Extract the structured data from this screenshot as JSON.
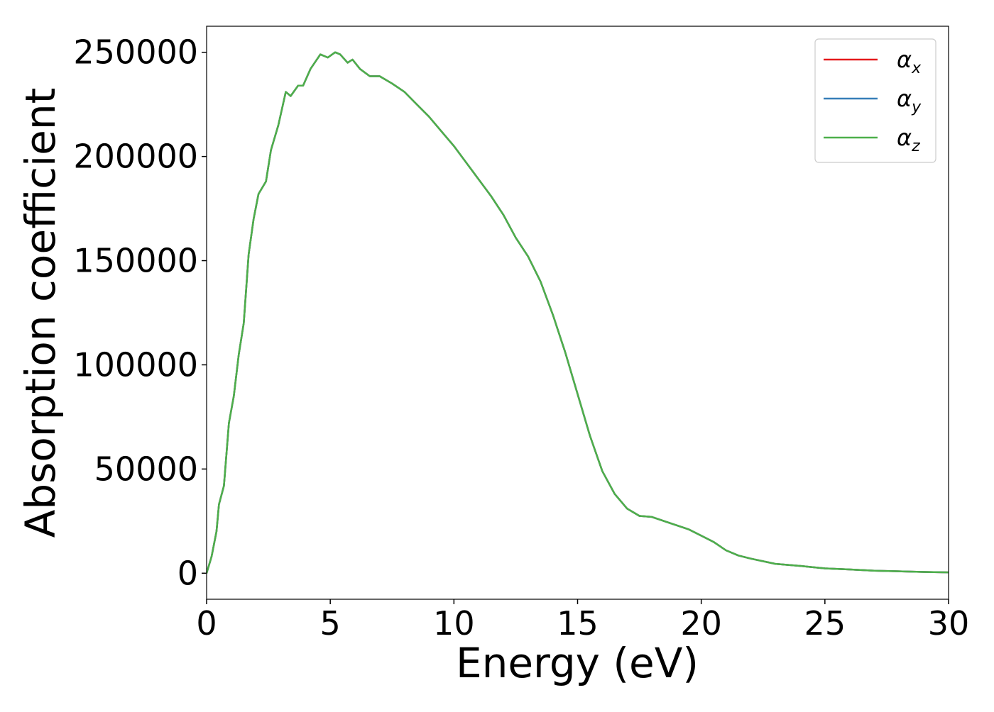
{
  "chart_data": {
    "type": "line",
    "xlabel": "Energy (eV)",
    "ylabel": "Absorption coefficient",
    "x": [
      0,
      0.2,
      0.4,
      0.5,
      0.7,
      0.9,
      1.1,
      1.3,
      1.5,
      1.7,
      1.9,
      2.1,
      2.4,
      2.6,
      2.9,
      3.2,
      3.4,
      3.7,
      3.9,
      4.2,
      4.6,
      4.9,
      5.2,
      5.4,
      5.7,
      5.9,
      6.2,
      6.6,
      7.0,
      7.5,
      8.0,
      8.5,
      9.0,
      9.5,
      10.0,
      10.5,
      11.0,
      11.5,
      12.0,
      12.5,
      13.0,
      13.5,
      14.0,
      14.5,
      15.0,
      15.5,
      16.0,
      16.5,
      17.0,
      17.5,
      18.0,
      18.5,
      19.0,
      19.5,
      20.0,
      20.5,
      21.0,
      21.5,
      22.0,
      23.0,
      24.0,
      25.0,
      26.0,
      27.0,
      28.0,
      29.0,
      30.0
    ],
    "series": [
      {
        "name": "αx",
        "color": "#e41a1c",
        "values": [
          0,
          8000,
          20000,
          33000,
          42000,
          72000,
          85000,
          105000,
          120000,
          153000,
          170000,
          182000,
          188000,
          203000,
          215000,
          231000,
          229000,
          234000,
          234000,
          242000,
          249000,
          247500,
          250000,
          249000,
          245000,
          246500,
          242000,
          238500,
          238500,
          235000,
          231000,
          225000,
          219000,
          212000,
          205000,
          197000,
          189000,
          181000,
          172000,
          161000,
          152000,
          140000,
          124000,
          106000,
          86000,
          66000,
          49000,
          38000,
          31000,
          27500,
          27000,
          25000,
          23000,
          21000,
          18000,
          15000,
          11000,
          8500,
          7000,
          4500,
          3500,
          2300,
          1800,
          1200,
          900,
          600,
          400
        ]
      },
      {
        "name": "αy",
        "color": "#377eb8",
        "values": [
          0,
          8000,
          20000,
          33000,
          42000,
          72000,
          85000,
          105000,
          120000,
          153000,
          170000,
          182000,
          188000,
          203000,
          215000,
          231000,
          229000,
          234000,
          234000,
          242000,
          249000,
          247500,
          250000,
          249000,
          245000,
          246500,
          242000,
          238500,
          238500,
          235000,
          231000,
          225000,
          219000,
          212000,
          205000,
          197000,
          189000,
          181000,
          172000,
          161000,
          152000,
          140000,
          124000,
          106000,
          86000,
          66000,
          49000,
          38000,
          31000,
          27500,
          27000,
          25000,
          23000,
          21000,
          18000,
          15000,
          11000,
          8500,
          7000,
          4500,
          3500,
          2300,
          1800,
          1200,
          900,
          600,
          400
        ]
      },
      {
        "name": "αz",
        "color": "#4daf4a",
        "values": [
          0,
          8000,
          20000,
          33000,
          42000,
          72000,
          85000,
          105000,
          120000,
          153000,
          170000,
          182000,
          188000,
          203000,
          215000,
          231000,
          229000,
          234000,
          234000,
          242000,
          249000,
          247500,
          250000,
          249000,
          245000,
          246500,
          242000,
          238500,
          238500,
          235000,
          231000,
          225000,
          219000,
          212000,
          205000,
          197000,
          189000,
          181000,
          172000,
          161000,
          152000,
          140000,
          124000,
          106000,
          86000,
          66000,
          49000,
          38000,
          31000,
          27500,
          27000,
          25000,
          23000,
          21000,
          18000,
          15000,
          11000,
          8500,
          7000,
          4500,
          3500,
          2300,
          1800,
          1200,
          900,
          600,
          400
        ]
      }
    ],
    "xlim": [
      0,
      30
    ],
    "xticks": [
      0,
      5,
      10,
      15,
      20,
      25,
      30
    ],
    "ylim": [
      -12500,
      262500
    ],
    "yticks": [
      0,
      50000,
      100000,
      150000,
      200000,
      250000
    ],
    "legend": "upper right"
  }
}
